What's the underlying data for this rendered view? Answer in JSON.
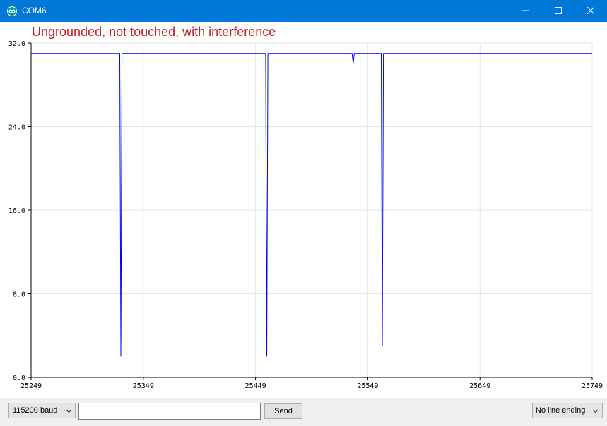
{
  "window": {
    "title": "COM6"
  },
  "overlay": {
    "title": "Ungrounded, not touched, with interference"
  },
  "controls": {
    "baud": "115200 baud",
    "send_input_value": "",
    "send_label": "Send",
    "line_ending": "No line ending"
  },
  "colors": {
    "titlebar": "#0078d7",
    "series": "#0000ff",
    "overlay_title": "#c0202c"
  },
  "icons": {
    "app": "arduino-icon",
    "minimize": "minimize-icon",
    "maximize": "maximize-icon",
    "close": "close-icon"
  },
  "chart_data": {
    "type": "line",
    "title": "",
    "xlabel": "",
    "ylabel": "",
    "xlim": [
      25249,
      25749
    ],
    "ylim": [
      0,
      32
    ],
    "x_ticks": [
      "25249",
      "25349",
      "25449",
      "25549",
      "25649",
      "25749"
    ],
    "y_ticks": [
      "0.0",
      "8.0",
      "16.0",
      "24.0",
      "32.0"
    ],
    "grid": true,
    "series": [
      {
        "values": [
          [
            25249,
            31
          ],
          [
            25328,
            31
          ],
          [
            25329,
            2
          ],
          [
            25330,
            31
          ],
          [
            25458,
            31
          ],
          [
            25459,
            2
          ],
          [
            25460,
            31
          ],
          [
            25535,
            31
          ],
          [
            25536,
            30.0
          ],
          [
            25537,
            31
          ],
          [
            25561,
            31
          ],
          [
            25562,
            3
          ],
          [
            25563,
            31
          ],
          [
            25749,
            31
          ]
        ]
      }
    ]
  }
}
